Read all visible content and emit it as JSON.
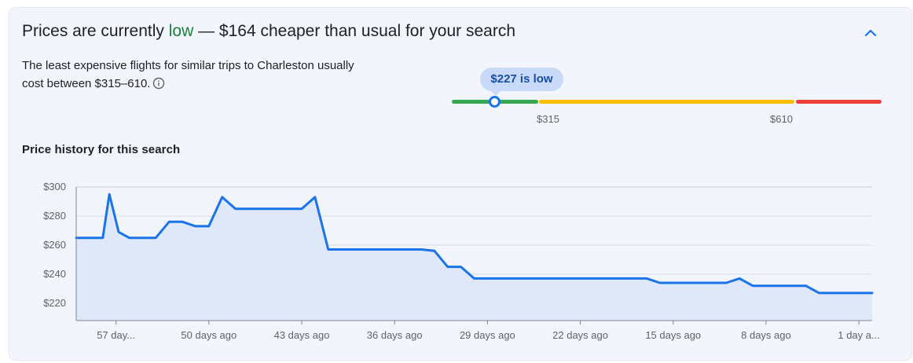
{
  "headline": {
    "prefix": "Prices are currently ",
    "status": "low",
    "suffix": " — $164 cheaper than usual for your search"
  },
  "description": "The least expensive flights for similar trips to Charleston usually cost between $315–610.",
  "price_range": {
    "current_label": "$227 is low",
    "low_threshold_label": "$315",
    "high_threshold_label": "$610",
    "colors": {
      "low": "#34a853",
      "typical": "#fbbc04",
      "high": "#ea4335"
    }
  },
  "history": {
    "title": "Price history for this search"
  },
  "icons": {
    "collapse": "chevron-up-icon",
    "info": "info-icon"
  },
  "chart_data": {
    "type": "area",
    "title": "Price history for this search",
    "xlabel": "",
    "ylabel": "",
    "x_tick_labels": [
      "57 day...",
      "50 days ago",
      "43 days ago",
      "36 days ago",
      "29 days ago",
      "22 days ago",
      "15 days ago",
      "8 days ago",
      "1 day a..."
    ],
    "x_tick_days_ago": [
      57,
      50,
      43,
      36,
      29,
      22,
      15,
      8,
      1
    ],
    "y_tick_labels": [
      "$220",
      "$240",
      "$260",
      "$280",
      "$300"
    ],
    "y_ticks": [
      220,
      240,
      260,
      280,
      300
    ],
    "ylim": [
      208,
      300
    ],
    "xlim_days_ago": [
      60,
      0
    ],
    "grid": true,
    "color": "#1a73e8",
    "fill": "#dfe8f8",
    "series": [
      {
        "days_ago": [
          60,
          58,
          57.5,
          56.8,
          56,
          55,
          54,
          53,
          52,
          51,
          50,
          49,
          48,
          47,
          46,
          45,
          44,
          43,
          42,
          41,
          40,
          39,
          38,
          37,
          36,
          35,
          34,
          33,
          32,
          31,
          30,
          29,
          28,
          27,
          26,
          25,
          24,
          23,
          22,
          21,
          20,
          19,
          18,
          17,
          16,
          15,
          14,
          13,
          12,
          11,
          10,
          9,
          8,
          7,
          6,
          5,
          4,
          3,
          2,
          1,
          0
        ],
        "values": [
          265,
          265,
          295,
          269,
          265,
          265,
          265,
          276,
          276,
          273,
          273,
          293,
          285,
          285,
          285,
          285,
          285,
          285,
          293,
          257,
          257,
          257,
          257,
          257,
          257,
          257,
          257,
          256,
          245,
          245,
          237,
          237,
          237,
          237,
          237,
          237,
          237,
          237,
          237,
          237,
          237,
          237,
          237,
          237,
          234,
          234,
          234,
          234,
          234,
          234,
          237,
          232,
          232,
          232,
          232,
          232,
          227,
          227,
          227,
          227,
          227
        ]
      }
    ]
  }
}
